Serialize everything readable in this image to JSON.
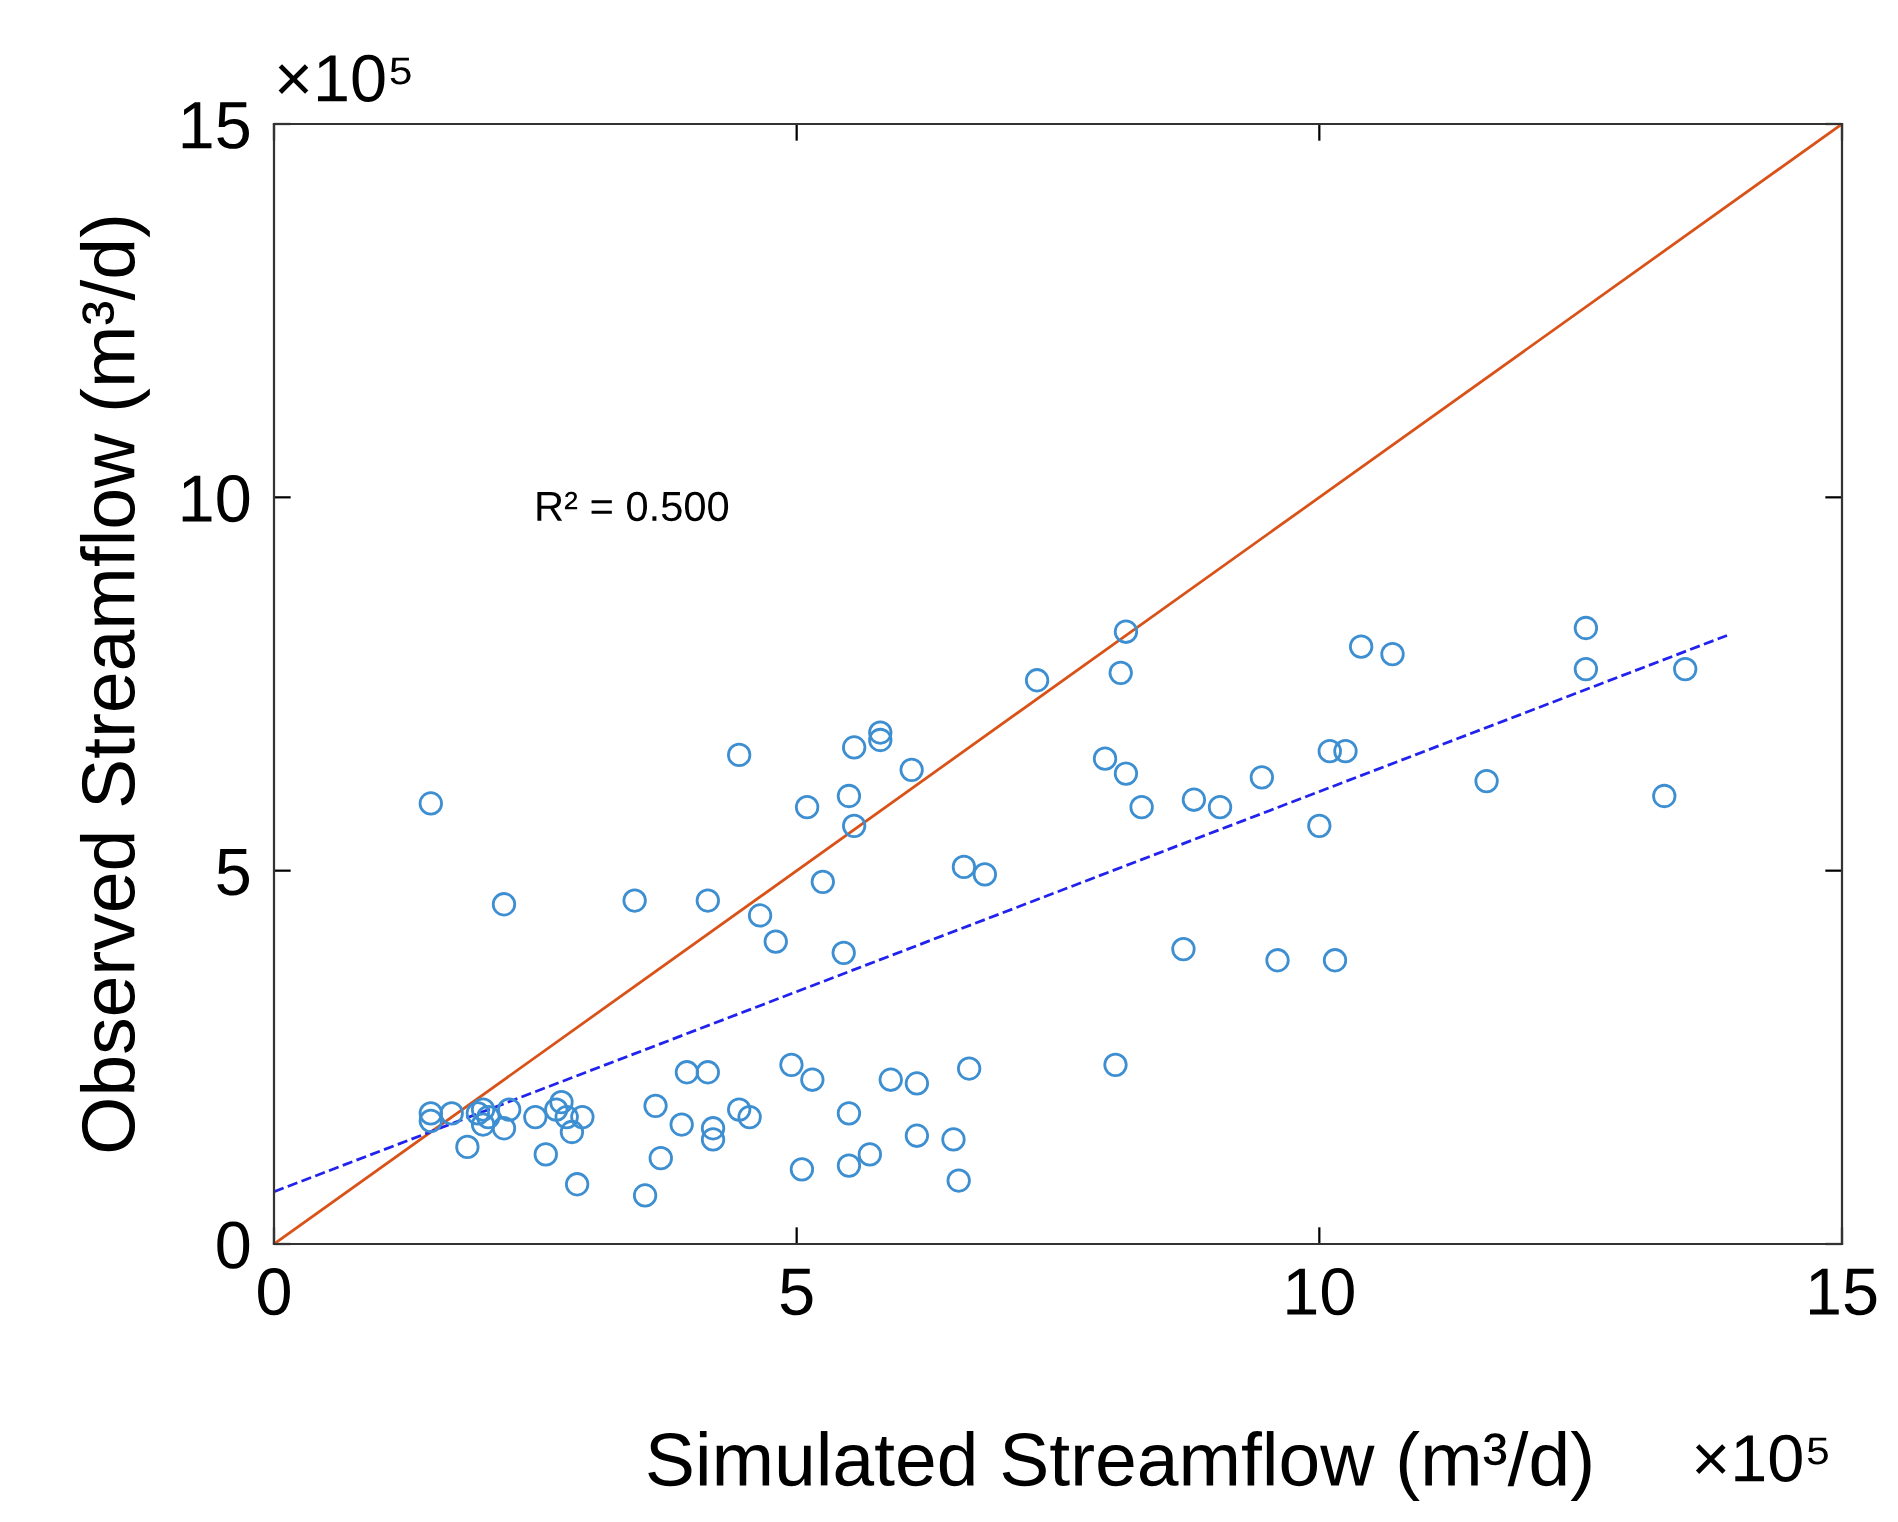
{
  "chart_data": {
    "type": "scatter",
    "xlabel": "Simulated Streamflow (m³/d)",
    "ylabel": "Observed Streamflow (m³/d)",
    "xlim": [
      0,
      15
    ],
    "ylim": [
      0,
      15
    ],
    "xticks": [
      0,
      5,
      10,
      15
    ],
    "yticks": [
      0,
      5,
      10,
      15
    ],
    "grid": false,
    "legend": false,
    "annotations": [
      "×10⁵",
      "×10⁵",
      "R² = 0.500"
    ],
    "series": [
      {
        "marker": "circle",
        "color": "#3d8fd1",
        "x": [
          1.5,
          2.2,
          1.5,
          1.5,
          1.7,
          1.85,
          1.95,
          2.0,
          2.0,
          2.05,
          2.2,
          2.25,
          2.5,
          2.6,
          2.7,
          2.75,
          2.8,
          2.85,
          2.9,
          2.95,
          3.45,
          3.55,
          3.65,
          3.7,
          3.9,
          3.95,
          4.15,
          4.15,
          4.2,
          4.2,
          4.45,
          4.45,
          4.55,
          4.65,
          4.8,
          4.95,
          5.05,
          5.1,
          5.15,
          5.25,
          5.45,
          5.5,
          5.5,
          5.5,
          5.55,
          5.55,
          5.7,
          5.8,
          5.8,
          5.9,
          6.1,
          6.15,
          6.15,
          6.5,
          6.55,
          6.6,
          6.65,
          6.8,
          7.3,
          8.05,
          7.95,
          8.15,
          8.1,
          8.15,
          8.3,
          8.7,
          8.8,
          9.05,
          9.45,
          9.6,
          10.0,
          10.1,
          10.15,
          10.25,
          10.4,
          10.7,
          11.6,
          12.55,
          12.55,
          13.3,
          13.5
        ],
        "values": [
          5.9,
          4.55,
          1.75,
          1.65,
          1.75,
          1.3,
          1.75,
          1.6,
          1.8,
          1.7,
          1.55,
          1.8,
          1.7,
          1.2,
          1.8,
          1.9,
          1.7,
          1.5,
          0.8,
          1.7,
          4.6,
          0.65,
          1.85,
          1.15,
          1.6,
          2.3,
          4.6,
          2.3,
          1.55,
          1.4,
          6.55,
          1.8,
          1.7,
          4.4,
          4.05,
          2.4,
          1.0,
          5.85,
          2.2,
          4.85,
          3.9,
          1.75,
          1.05,
          6.0,
          6.65,
          5.6,
          1.2,
          6.85,
          6.75,
          2.2,
          6.35,
          1.45,
          2.15,
          1.4,
          0.85,
          5.05,
          2.35,
          4.95,
          7.55,
          2.4,
          6.5,
          8.2,
          7.65,
          6.3,
          5.85,
          3.95,
          5.95,
          5.85,
          6.25,
          3.8,
          5.6,
          6.6,
          3.8,
          6.6,
          8.0,
          7.9,
          6.2,
          8.25,
          7.7,
          6.0,
          7.7
        ]
      },
      {
        "type": "line",
        "marker": "none",
        "color": "#d95319",
        "line_style": "solid",
        "x": [
          0,
          15
        ],
        "values": [
          0,
          15
        ]
      },
      {
        "type": "line",
        "marker": "none",
        "color": "#2222ee",
        "line_style": "dashed",
        "x": [
          0,
          13.9
        ],
        "values": [
          0.7,
          8.15
        ]
      }
    ]
  }
}
